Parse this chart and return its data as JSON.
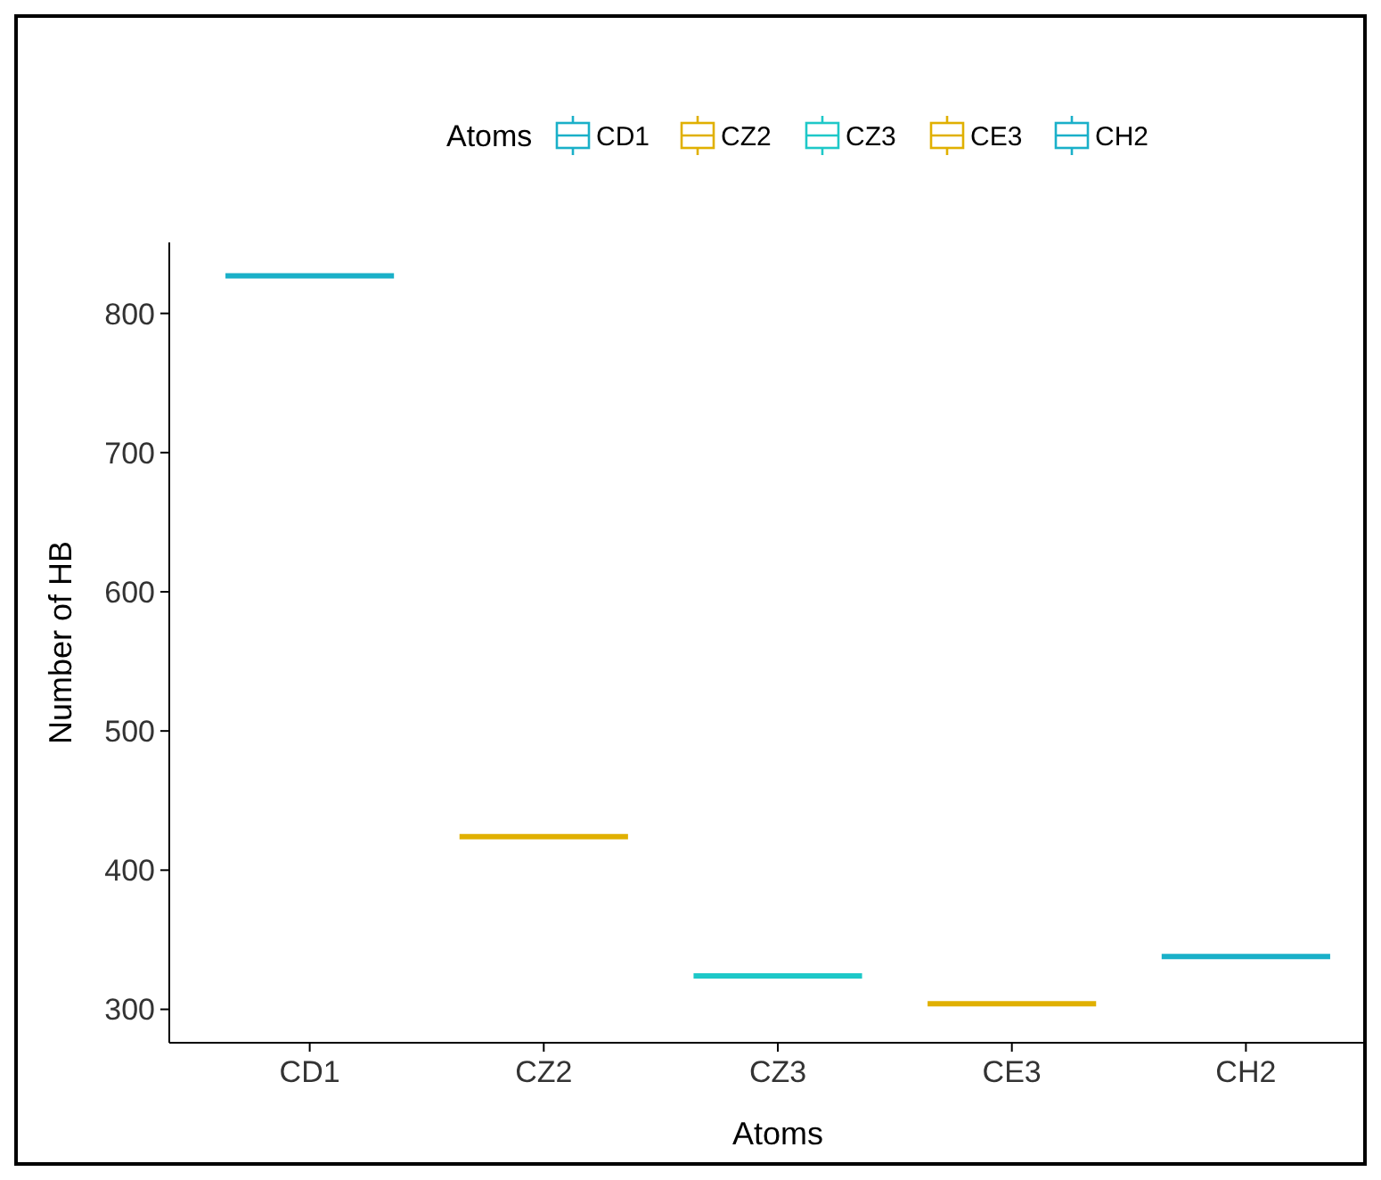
{
  "chart_data": {
    "type": "box",
    "xlabel": "Atoms",
    "ylabel": "Number of HB",
    "legend_title": "Atoms",
    "legend": "top",
    "categories": [
      "CD1",
      "CZ2",
      "CZ3",
      "CE3",
      "CH2"
    ],
    "series": [
      {
        "name": "CD1",
        "color": "#1ab0c8",
        "boxes": [
          {
            "low": 827,
            "q1": 827,
            "median": 827,
            "q3": 827,
            "high": 827
          },
          null,
          null,
          null,
          null
        ]
      },
      {
        "name": "CZ2",
        "color": "#e0b000",
        "boxes": [
          null,
          {
            "low": 424,
            "q1": 424,
            "median": 424,
            "q3": 424,
            "high": 424
          },
          null,
          null,
          null
        ]
      },
      {
        "name": "CZ3",
        "color": "#1ec8c8",
        "boxes": [
          null,
          null,
          {
            "low": 324,
            "q1": 324,
            "median": 324,
            "q3": 324,
            "high": 324
          },
          null,
          null
        ]
      },
      {
        "name": "CE3",
        "color": "#e0b001",
        "boxes": [
          null,
          null,
          null,
          {
            "low": 304,
            "q1": 304,
            "median": 304,
            "q3": 304,
            "high": 304
          },
          null
        ]
      },
      {
        "name": "CH2",
        "color": "#1ab0c9",
        "boxes": [
          null,
          null,
          null,
          null,
          {
            "low": 338,
            "q1": 338,
            "median": 338,
            "q3": 338,
            "high": 338
          }
        ]
      }
    ],
    "ylim": [
      276,
      851
    ],
    "yticks": [
      300,
      400,
      500,
      600,
      700,
      800
    ]
  }
}
